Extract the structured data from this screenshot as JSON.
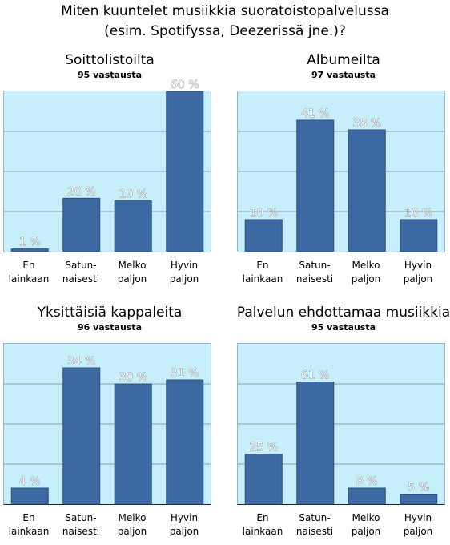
{
  "page_title": {
    "line1": "Miten kuuntelet musiikkia suoratoistopalvelussa",
    "line2": "(esim. Spotifyssa, Deezerissä jne.)?"
  },
  "categories": [
    {
      "line1": "En",
      "line2": "lainkaan"
    },
    {
      "line1": "Satun-",
      "line2": "naisesti"
    },
    {
      "line1": "Melko",
      "line2": "paljon"
    },
    {
      "line1": "Hyvin",
      "line2": "paljon"
    }
  ],
  "colors": {
    "bar": "#3d6aa3",
    "bar_edge": "#2c4f7c",
    "plot_bg": "#c7eefb",
    "grid": "#8aa0aa"
  },
  "chart_data": [
    {
      "type": "bar",
      "title": "Soittolistoilta",
      "subtitle": "95 vastausta",
      "categories": [
        "En lainkaan",
        "Satunnaisesti",
        "Melko paljon",
        "Hyvin paljon"
      ],
      "values": [
        1,
        20,
        19,
        60
      ],
      "labels": [
        "1 %",
        "20 %",
        "19 %",
        "60 %"
      ],
      "ylim": [
        0,
        60
      ],
      "grid": true
    },
    {
      "type": "bar",
      "title": "Albumeilta",
      "subtitle": "97 vastausta",
      "categories": [
        "En lainkaan",
        "Satunnaisesti",
        "Melko paljon",
        "Hyvin paljon"
      ],
      "values": [
        10,
        41,
        38,
        10
      ],
      "labels": [
        "10 %",
        "41 %",
        "38 %",
        "10 %"
      ],
      "ylim": [
        0,
        50
      ],
      "grid": true
    },
    {
      "type": "bar",
      "title": "Yksittäisiä kappaleita",
      "subtitle": "96 vastausta",
      "categories": [
        "En lainkaan",
        "Satunnaisesti",
        "Melko paljon",
        "Hyvin paljon"
      ],
      "values": [
        4,
        34,
        30,
        31
      ],
      "labels": [
        "4 %",
        "34 %",
        "30 %",
        "31 %"
      ],
      "ylim": [
        0,
        40
      ],
      "grid": true
    },
    {
      "type": "bar",
      "title": "Palvelun ehdottamaa musiikkia",
      "subtitle": "95 vastausta",
      "categories": [
        "En lainkaan",
        "Satunnaisesti",
        "Melko paljon",
        "Hyvin paljon"
      ],
      "values": [
        25,
        61,
        8,
        5
      ],
      "labels": [
        "25 %",
        "61 %",
        "8 %",
        "5 %"
      ],
      "ylim": [
        0,
        80
      ],
      "grid": true
    }
  ]
}
